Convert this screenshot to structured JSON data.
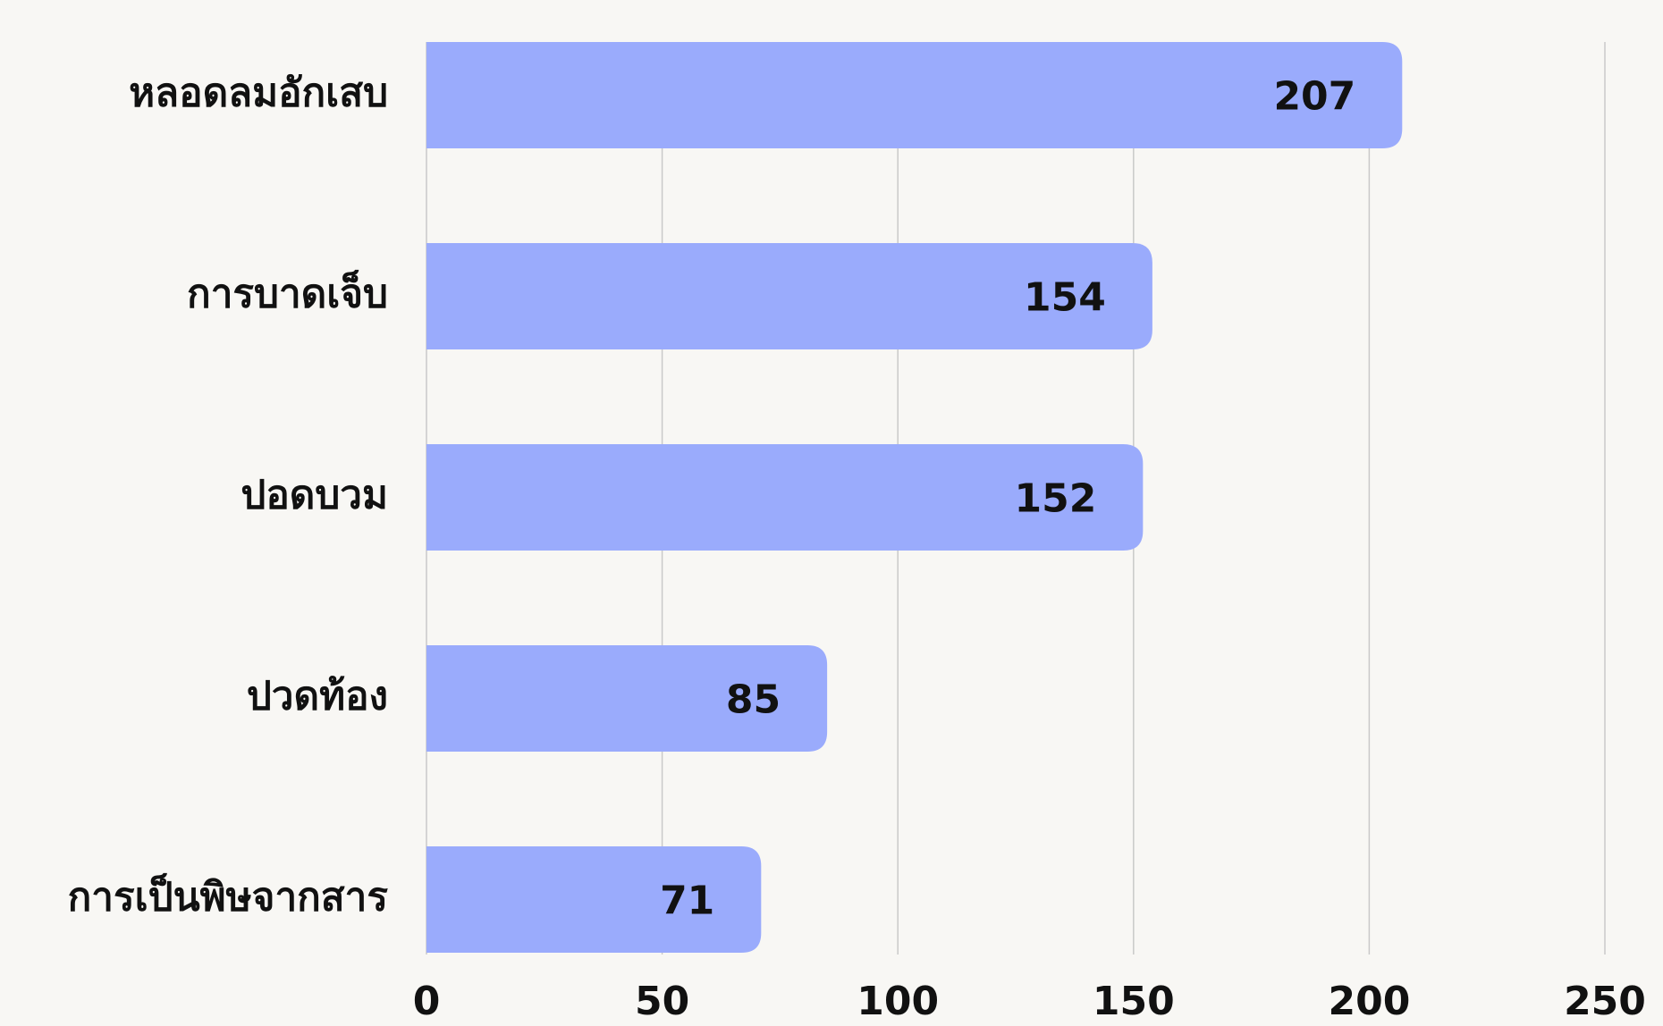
{
  "chart_data": {
    "type": "bar",
    "orientation": "horizontal",
    "categories": [
      "หลอดลมอักเสบ",
      "การบาดเจ็บ",
      "ปอดบวม",
      "ปวดท้อง",
      "การเป็นพิษจากสาร"
    ],
    "values": [
      207,
      154,
      152,
      85,
      71
    ],
    "color": "#9aabfc",
    "xlim": [
      0,
      250
    ],
    "xticks": [
      0,
      50,
      100,
      150,
      200,
      250
    ],
    "grid": true
  }
}
